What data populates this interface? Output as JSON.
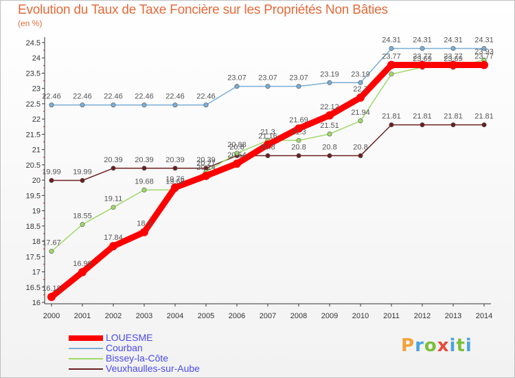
{
  "title": "Evolution du Taux de Taxe Foncière sur les Propriétés Non Bâties",
  "subtitle": "(en %)",
  "logo": {
    "text": "Proxiti",
    "colors": [
      "#f4a13a",
      "#4aa3df",
      "#7bbf3c",
      "#e74c3c",
      "#4aa3df",
      "#7bbf3c",
      "#4aa3df"
    ]
  },
  "chart_data": {
    "type": "line",
    "x": [
      2000,
      2001,
      2002,
      2003,
      2004,
      2005,
      2006,
      2007,
      2008,
      2009,
      2010,
      2011,
      2012,
      2013,
      2014
    ],
    "ylim": [
      16,
      24.5
    ],
    "yticks": [
      16,
      16.5,
      17,
      17.5,
      18,
      18.5,
      19,
      19.5,
      20,
      20.5,
      21,
      21.5,
      22,
      22.5,
      23,
      23.5,
      24,
      24.5
    ],
    "grid": false,
    "legend_position": "bottom-left",
    "series": [
      {
        "name": "Veuxhaulles-sur-Aube",
        "color": "#6b1f1f",
        "values": [
          19.99,
          19.99,
          20.39,
          20.39,
          20.39,
          20.39,
          20.8,
          20.8,
          20.8,
          20.8,
          20.8,
          21.81,
          21.81,
          21.81,
          21.81
        ],
        "labels": [
          "19.99",
          "19.99",
          "20.39",
          "20.39",
          "20.39",
          "20.39",
          "20.8",
          "20.8",
          "20.8",
          "20.8",
          "20.8",
          "21.81",
          "21.81",
          "21.81",
          "21.81"
        ]
      },
      {
        "name": "Bissey-la-Côte",
        "color": "#9fd86a",
        "values": [
          17.67,
          18.55,
          19.11,
          19.68,
          19.68,
          20.27,
          20.88,
          21.3,
          21.3,
          21.51,
          21.94,
          23.47,
          23.69,
          23.69,
          23.93
        ],
        "labels": [
          "17.67",
          "18.55",
          "19.11",
          "19.68",
          "19.68",
          "20.27",
          "20.88",
          "21.3",
          "21.3",
          "21.51",
          "21.94",
          "",
          "23.69",
          "23.69",
          "23.93"
        ]
      },
      {
        "name": "Courban",
        "color": "#7aaed6",
        "values": [
          22.46,
          22.46,
          22.46,
          22.46,
          22.46,
          22.46,
          23.07,
          23.07,
          23.07,
          23.19,
          23.19,
          24.31,
          24.31,
          24.31,
          24.31
        ],
        "labels": [
          "22.46",
          "22.46",
          "22.46",
          "22.46",
          "22.46",
          "22.46",
          "23.07",
          "23.07",
          "23.07",
          "23.19",
          "23.19",
          "24.31",
          "24.31",
          "24.31",
          "24.31"
        ]
      },
      {
        "name": "LOUESME",
        "color": "#ff0000",
        "values": [
          16.18,
          16.99,
          17.84,
          18.3,
          19.76,
          20.14,
          20.54,
          21.16,
          21.69,
          22.12,
          22.7,
          23.77,
          23.77,
          23.77,
          23.77
        ],
        "labels": [
          "16.18",
          "16.99",
          "17.84",
          "18.3",
          "19.76",
          "20.14",
          "20.54",
          "21.16",
          "21.69",
          "22.12",
          "22.7",
          "23.77",
          "23.77",
          "23.77",
          "23.77"
        ]
      }
    ]
  },
  "legend": {
    "items": [
      {
        "name": "LOUESME",
        "color": "#ff0000"
      },
      {
        "name": "Courban",
        "color": "#7aaed6"
      },
      {
        "name": "Bissey-la-Côte",
        "color": "#9fd86a"
      },
      {
        "name": "Veuxhaulles-sur-Aube",
        "color": "#6b1f1f"
      }
    ]
  }
}
